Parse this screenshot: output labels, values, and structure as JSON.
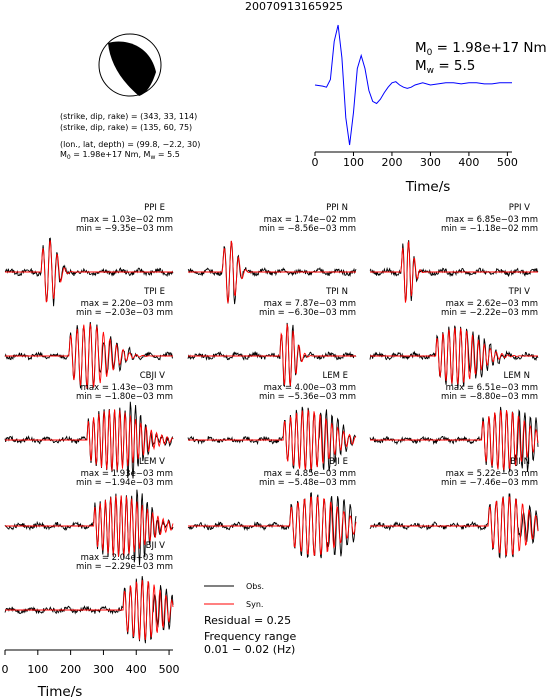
{
  "title": "20070913165925",
  "mechanism": {
    "lines": [
      "(strike, dip, rake) = (343, 33, 114)",
      "(strike, dip, rake) = (135, 60, 75)",
      "(lon., lat, depth) = (99.8, −2.2, 30)"
    ],
    "moment_line_prefix": "M",
    "moment_line_sub": "0",
    "moment_line_mid": " = 1.98e+17 Nm, M",
    "moment_line_sub2": "w",
    "moment_line_suffix": " = 5.5"
  },
  "stf": {
    "m0_prefix": "M",
    "m0_sub": "0",
    "m0_value": " = 1.98e+17 Nm",
    "mw_prefix": "M",
    "mw_sub": "w",
    "mw_value": " = 5.5",
    "xlabel": "Time/s",
    "xticks": [
      "0",
      "100",
      "200",
      "300",
      "400",
      "500"
    ]
  },
  "legend": {
    "obs": "Obs.",
    "syn": "Syn.",
    "residual": "Residual = 0.25",
    "freq_label": "Frequency range",
    "freq_value": "0.01 − 0.02 (Hz)",
    "obs_color": "#000000",
    "syn_color": "#ff0000"
  },
  "bottom_axis": {
    "xlabel": "Time/s",
    "xticks": [
      "0",
      "100",
      "200",
      "300",
      "400",
      "500"
    ]
  },
  "chart_data": {
    "type": "line",
    "title": "20070913165925",
    "stf_series": {
      "name": "",
      "color": "#0000ff",
      "x": [
        0,
        20,
        30,
        40,
        50,
        60,
        70,
        80,
        90,
        100,
        110,
        120,
        130,
        140,
        150,
        160,
        170,
        180,
        190,
        200,
        210,
        220,
        230,
        240,
        250,
        260,
        280,
        300,
        320,
        340,
        360,
        380,
        400,
        420,
        440,
        460,
        480,
        500,
        512
      ],
      "y": [
        0.45,
        0.44,
        0.43,
        0.5,
        0.85,
        1.0,
        0.7,
        0.15,
        -0.1,
        0.2,
        0.6,
        0.72,
        0.6,
        0.4,
        0.3,
        0.28,
        0.32,
        0.38,
        0.43,
        0.47,
        0.48,
        0.45,
        0.43,
        0.42,
        0.43,
        0.45,
        0.47,
        0.45,
        0.46,
        0.47,
        0.47,
        0.46,
        0.47,
        0.47,
        0.46,
        0.46,
        0.47,
        0.47,
        0.47
      ],
      "xlim": [
        0,
        512
      ]
    },
    "panels": [
      {
        "station": "PPI E",
        "max": "max = 1.03e−02 mm",
        "min": "min = −9.35e−03 mm",
        "onset": 110,
        "amp": 0.9,
        "freq": 22,
        "dur": 60,
        "obs_tail": 0.12
      },
      {
        "station": "PPI N",
        "max": "max = 1.74e−02 mm",
        "min": "min = −8.56e−03 mm",
        "onset": 105,
        "amp": 0.9,
        "freq": 22,
        "dur": 55,
        "obs_tail": 0.1
      },
      {
        "station": "PPI V",
        "max": "max = 6.85e−03 mm",
        "min": "min = −1.18e−02 mm",
        "onset": 95,
        "amp": 0.9,
        "freq": 18,
        "dur": 45,
        "obs_tail": 0.1
      },
      {
        "station": "TPI E",
        "max": "max = 2.20e−03 mm",
        "min": "min = −2.03e−03 mm",
        "onset": 195,
        "amp": 0.9,
        "freq": 20,
        "dur": 150,
        "obs_tail": 0.2
      },
      {
        "station": "TPI N",
        "max": "max = 7.87e−03 mm",
        "min": "min = −6.30e−03 mm",
        "onset": 280,
        "amp": 0.9,
        "freq": 18,
        "dur": 60,
        "obs_tail": 0.12
      },
      {
        "station": "TPI V",
        "max": "max = 2.62e−03 mm",
        "min": "min = −2.22e−03 mm",
        "onset": 200,
        "amp": 0.8,
        "freq": 18,
        "dur": 160,
        "obs_tail": 0.22
      },
      {
        "station": "CBJI V",
        "max": "max = 1.43e−03 mm",
        "min": "min = −1.80e−03 mm",
        "onset": 250,
        "amp": 0.85,
        "freq": 16,
        "dur": 200,
        "obs_tail": 0.25
      },
      {
        "station": "LEM E",
        "max": "max = 4.00e−03 mm",
        "min": "min = −5.36e−03 mm",
        "onset": 290,
        "amp": 0.85,
        "freq": 18,
        "dur": 180,
        "obs_tail": 0.3
      },
      {
        "station": "LEM N",
        "max": "max = 6.51e−03 mm",
        "min": "min = −8.80e−03 mm",
        "onset": 340,
        "amp": 0.85,
        "freq": 18,
        "dur": 170,
        "obs_tail": 0.35
      },
      {
        "station": "LEM V",
        "max": "max = 1.93e−03 mm",
        "min": "min = −1.94e−03 mm",
        "onset": 270,
        "amp": 0.85,
        "freq": 16,
        "dur": 200,
        "obs_tail": 0.25
      },
      {
        "station": "BJI E",
        "max": "max = 4.85e−03 mm",
        "min": "min = −5.48e−03 mm",
        "onset": 310,
        "amp": 0.85,
        "freq": 20,
        "dur": 190,
        "obs_tail": 0.35
      },
      {
        "station": "BJI N",
        "max": "max = 5.22e−03 mm",
        "min": "min = −7.46e−03 mm",
        "onset": 360,
        "amp": 0.85,
        "freq": 20,
        "dur": 150,
        "obs_tail": 0.35
      },
      {
        "station": "BJI V",
        "max": "max = 2.04e−03 mm",
        "min": "min = −2.29e−03 mm",
        "onset": 360,
        "amp": 0.85,
        "freq": 18,
        "dur": 150,
        "obs_tail": 0.3
      }
    ],
    "xlim": [
      0,
      512
    ],
    "xlabel": "Time/s"
  }
}
